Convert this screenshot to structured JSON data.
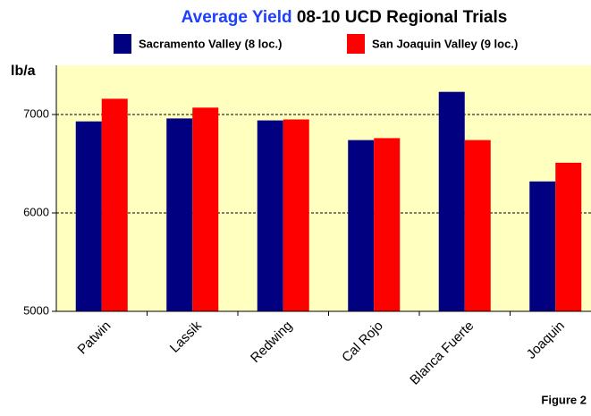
{
  "chart_data": {
    "type": "bar",
    "title": [
      "Average Yield",
      "08-10 UCD Regional Trials"
    ],
    "y_label": "lb/a",
    "annotation": "Figure 2",
    "categories": [
      "Patwin",
      "Lassik",
      "Redwing",
      "Cal Rojo",
      "Blanca Fuerte",
      "Joaquin"
    ],
    "series": [
      {
        "name": "Sacramento Valley (8 loc.)",
        "color": "#000080",
        "values": [
          6930,
          6960,
          6940,
          6740,
          7230,
          6320
        ]
      },
      {
        "name": "San Joaquin Valley (9 loc.)",
        "color": "#ff0000",
        "values": [
          7160,
          7070,
          6950,
          6760,
          6740,
          6510
        ]
      }
    ],
    "ylim": [
      5000,
      7500
    ],
    "yticks": [
      5000,
      6000,
      7000
    ],
    "grid": true
  }
}
